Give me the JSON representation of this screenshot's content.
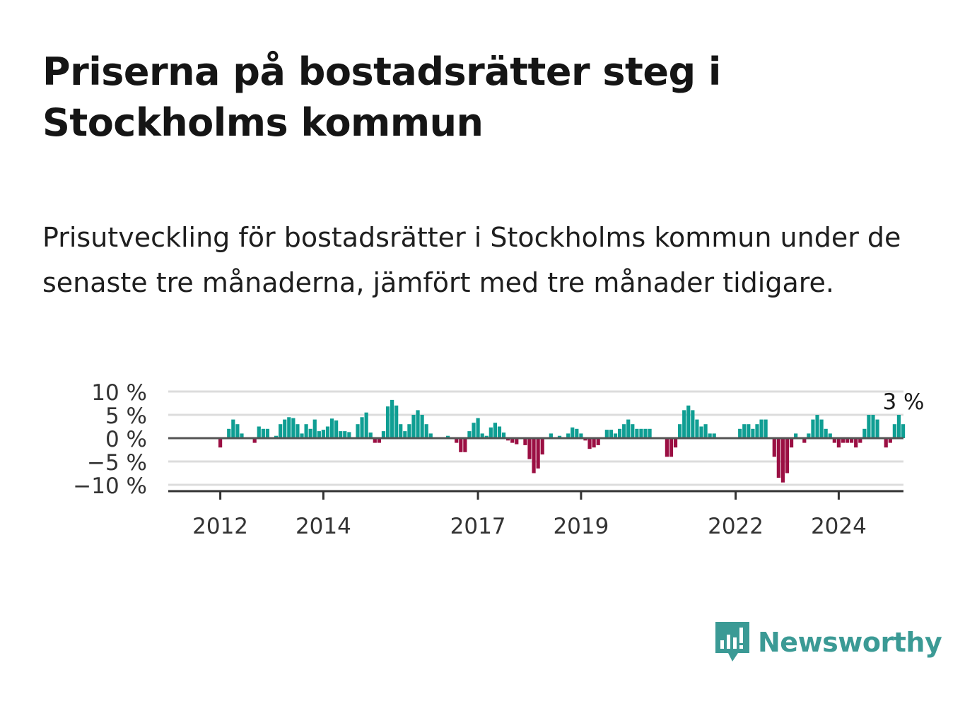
{
  "title": "Priserna på bostadsrätter steg i Stockholms kommun",
  "subtitle": "Prisutveckling för bostadsrätter i Stockholms kommun under de senaste tre månaderna, jämfört med tre månader tidigare.",
  "logo": {
    "text": "Newsworthy",
    "icon": "bar-chart-speech-bubble-icon",
    "color": "#3b9a95"
  },
  "colors": {
    "positive": "#0f9e93",
    "negative": "#9b0f43",
    "grid": "#dcdcdc",
    "axis": "#333333",
    "zero": "#555555"
  },
  "chart_data": {
    "type": "bar",
    "title": "",
    "xlabel": "",
    "ylabel": "",
    "ylim": [
      -11,
      11
    ],
    "y_ticks": [
      {
        "value": 10,
        "label": "10 %"
      },
      {
        "value": 5,
        "label": "5 %"
      },
      {
        "value": 0,
        "label": "0 %"
      },
      {
        "value": -5,
        "label": "−5 %"
      },
      {
        "value": -10,
        "label": "−10 %"
      }
    ],
    "x_ticks": [
      {
        "value": "2012-01",
        "label": "2012"
      },
      {
        "value": "2014-01",
        "label": "2014"
      },
      {
        "value": "2017-01",
        "label": "2017"
      },
      {
        "value": "2019-01",
        "label": "2019"
      },
      {
        "value": "2022-01",
        "label": "2022"
      },
      {
        "value": "2024-01",
        "label": "2024"
      }
    ],
    "start_month": "2011-05",
    "values": [
      0,
      0,
      0,
      0,
      0,
      0,
      0,
      0,
      -2,
      0,
      2,
      4,
      3,
      1,
      0,
      0,
      -1,
      2.5,
      2,
      2,
      0,
      0.5,
      3,
      4,
      4.5,
      4.3,
      3,
      1,
      3,
      2,
      4,
      1.5,
      1.8,
      2.5,
      4.2,
      3.8,
      1.5,
      1.5,
      1.3,
      0,
      3,
      4.5,
      5.5,
      1.2,
      -1,
      -1,
      1.5,
      6.8,
      8.2,
      7,
      3,
      1.5,
      3,
      5,
      6,
      5,
      3,
      1,
      0,
      0,
      0,
      0.5,
      0,
      -1,
      -3,
      -3,
      1.5,
      3.3,
      4.3,
      1,
      0.5,
      2.3,
      3.3,
      2.5,
      1.2,
      -0.5,
      -1,
      -1.3,
      0,
      -1.5,
      -4.5,
      -7.5,
      -6.5,
      -3.5,
      0,
      1,
      0,
      0.5,
      0,
      1,
      2.3,
      2,
      1,
      -0.5,
      -2.3,
      -2,
      -1.5,
      0,
      1.8,
      1.8,
      1,
      2,
      3,
      4,
      3,
      2,
      2,
      2,
      2,
      0,
      0,
      0,
      -4,
      -4,
      -2,
      3,
      6,
      7,
      6,
      4,
      2.5,
      3,
      1,
      1,
      0,
      0,
      0,
      0,
      0,
      2,
      3,
      3,
      2,
      3,
      4,
      4,
      0,
      -4,
      -8.5,
      -9.5,
      -7.5,
      -2,
      1,
      0,
      -1,
      1,
      4,
      5,
      4,
      2,
      1,
      -1,
      -2,
      -1,
      -1,
      -1,
      -2,
      -1,
      2,
      5,
      5,
      4,
      0,
      -2,
      -1,
      3,
      5,
      3
    ],
    "annotation": {
      "label": "3 %",
      "value": 3
    }
  }
}
